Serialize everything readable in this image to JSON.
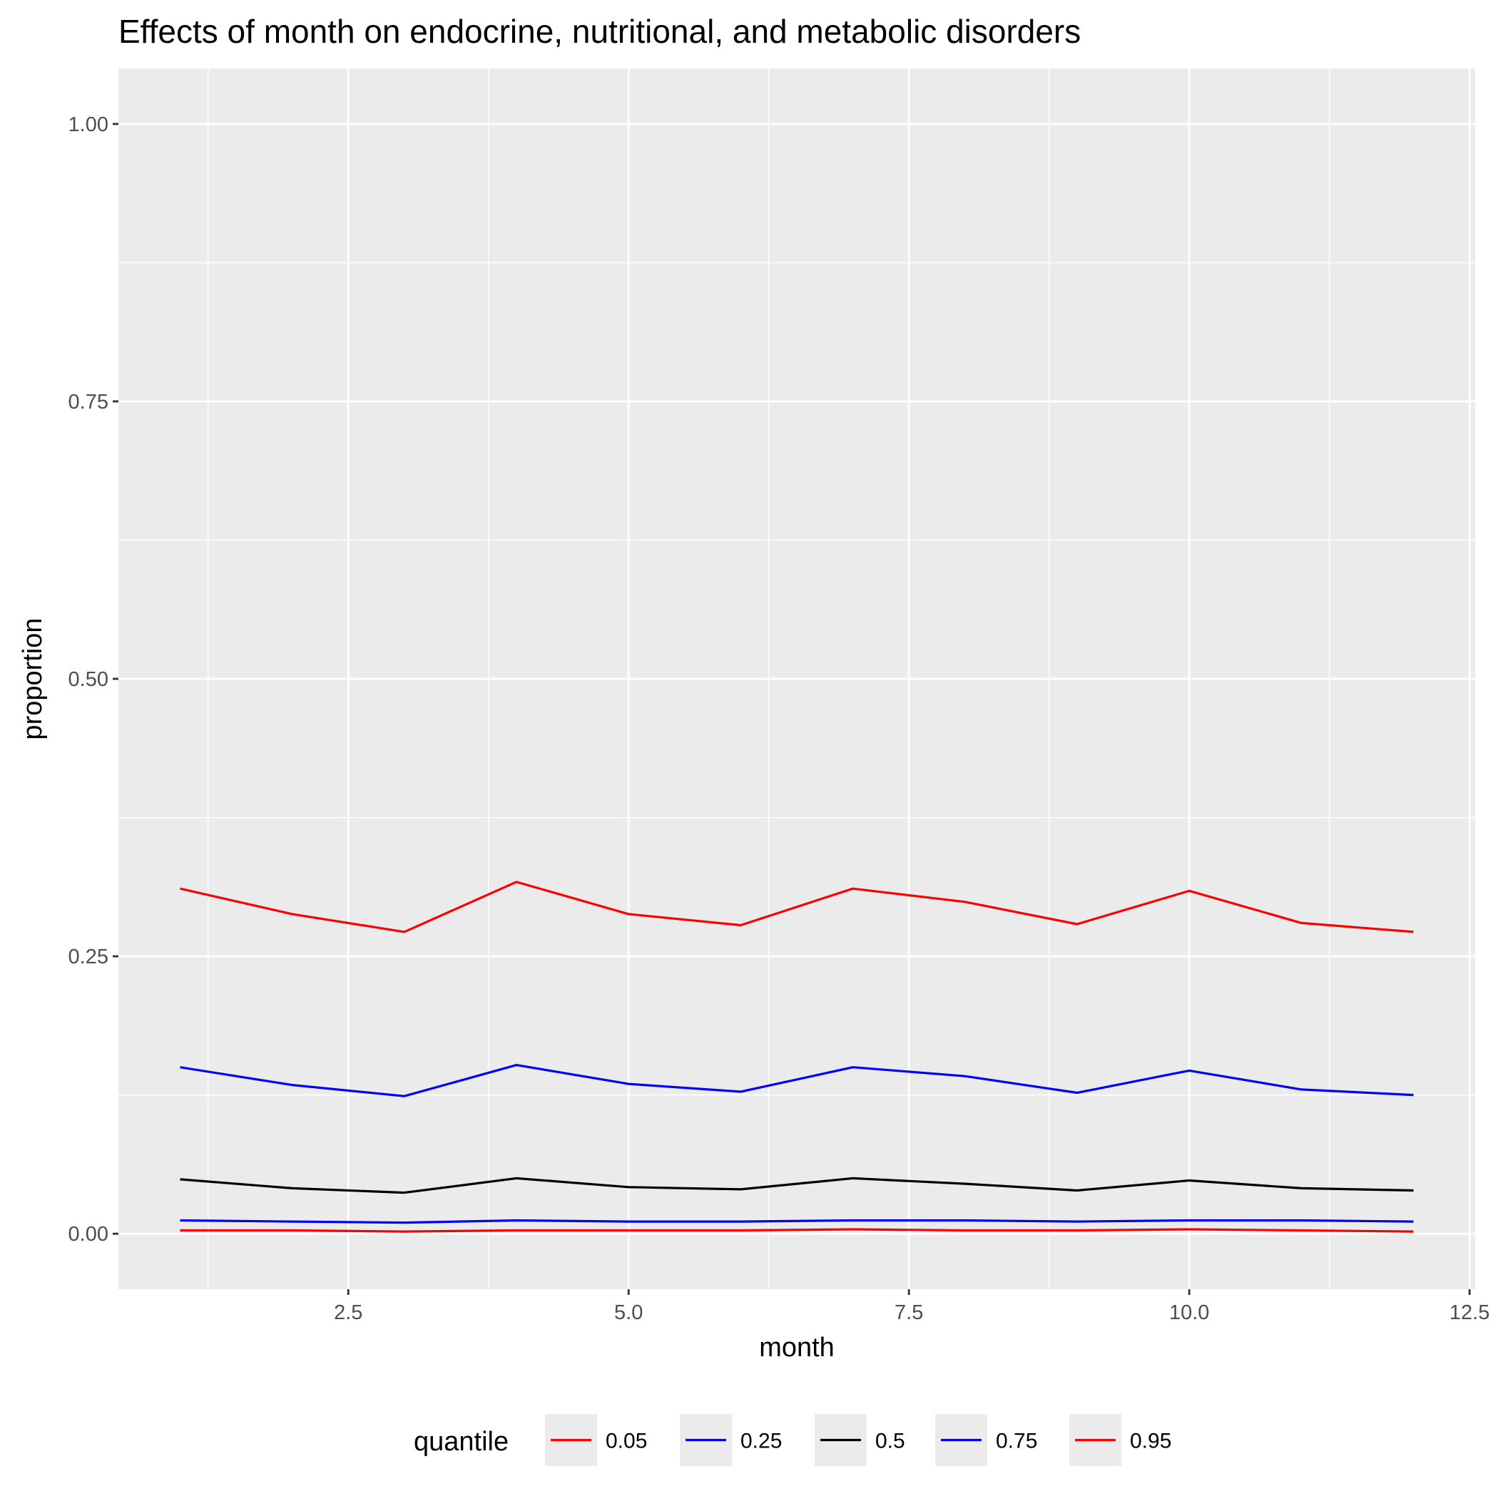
{
  "chart_data": {
    "type": "line",
    "title": "Effects of month on endocrine, nutritional, and metabolic disorders",
    "xlabel": "month",
    "ylabel": "proportion",
    "xlim": [
      0.45,
      12.55
    ],
    "ylim": [
      -0.05,
      1.05
    ],
    "x_ticks": [
      2.5,
      5.0,
      7.5,
      10.0,
      12.5
    ],
    "x_tick_labels": [
      "2.5",
      "5.0",
      "7.5",
      "10.0",
      "12.5"
    ],
    "y_ticks": [
      0.0,
      0.25,
      0.5,
      0.75,
      1.0
    ],
    "y_tick_labels": [
      "0.00",
      "0.25",
      "0.50",
      "0.75",
      "1.00"
    ],
    "grid": true,
    "legend_position": "bottom",
    "legend_title": "quantile",
    "x": [
      1,
      2,
      3,
      4,
      5,
      6,
      7,
      8,
      9,
      10,
      11,
      12
    ],
    "series": [
      {
        "name": "0.05",
        "color": "#ff0000",
        "values": [
          0.003,
          0.003,
          0.002,
          0.003,
          0.003,
          0.003,
          0.004,
          0.003,
          0.003,
          0.004,
          0.003,
          0.002
        ]
      },
      {
        "name": "0.25",
        "color": "#0000ff",
        "values": [
          0.012,
          0.011,
          0.01,
          0.012,
          0.011,
          0.011,
          0.012,
          0.012,
          0.011,
          0.012,
          0.012,
          0.011
        ]
      },
      {
        "name": "0.5",
        "color": "#000000",
        "values": [
          0.049,
          0.041,
          0.037,
          0.05,
          0.042,
          0.04,
          0.05,
          0.045,
          0.039,
          0.048,
          0.041,
          0.039
        ]
      },
      {
        "name": "0.75",
        "color": "#0000ff",
        "values": [
          0.15,
          0.134,
          0.124,
          0.152,
          0.135,
          0.128,
          0.15,
          0.142,
          0.127,
          0.147,
          0.13,
          0.125
        ]
      },
      {
        "name": "0.95",
        "color": "#ff0000",
        "values": [
          0.311,
          0.288,
          0.272,
          0.317,
          0.288,
          0.278,
          0.311,
          0.299,
          0.279,
          0.309,
          0.28,
          0.272
        ]
      }
    ]
  }
}
